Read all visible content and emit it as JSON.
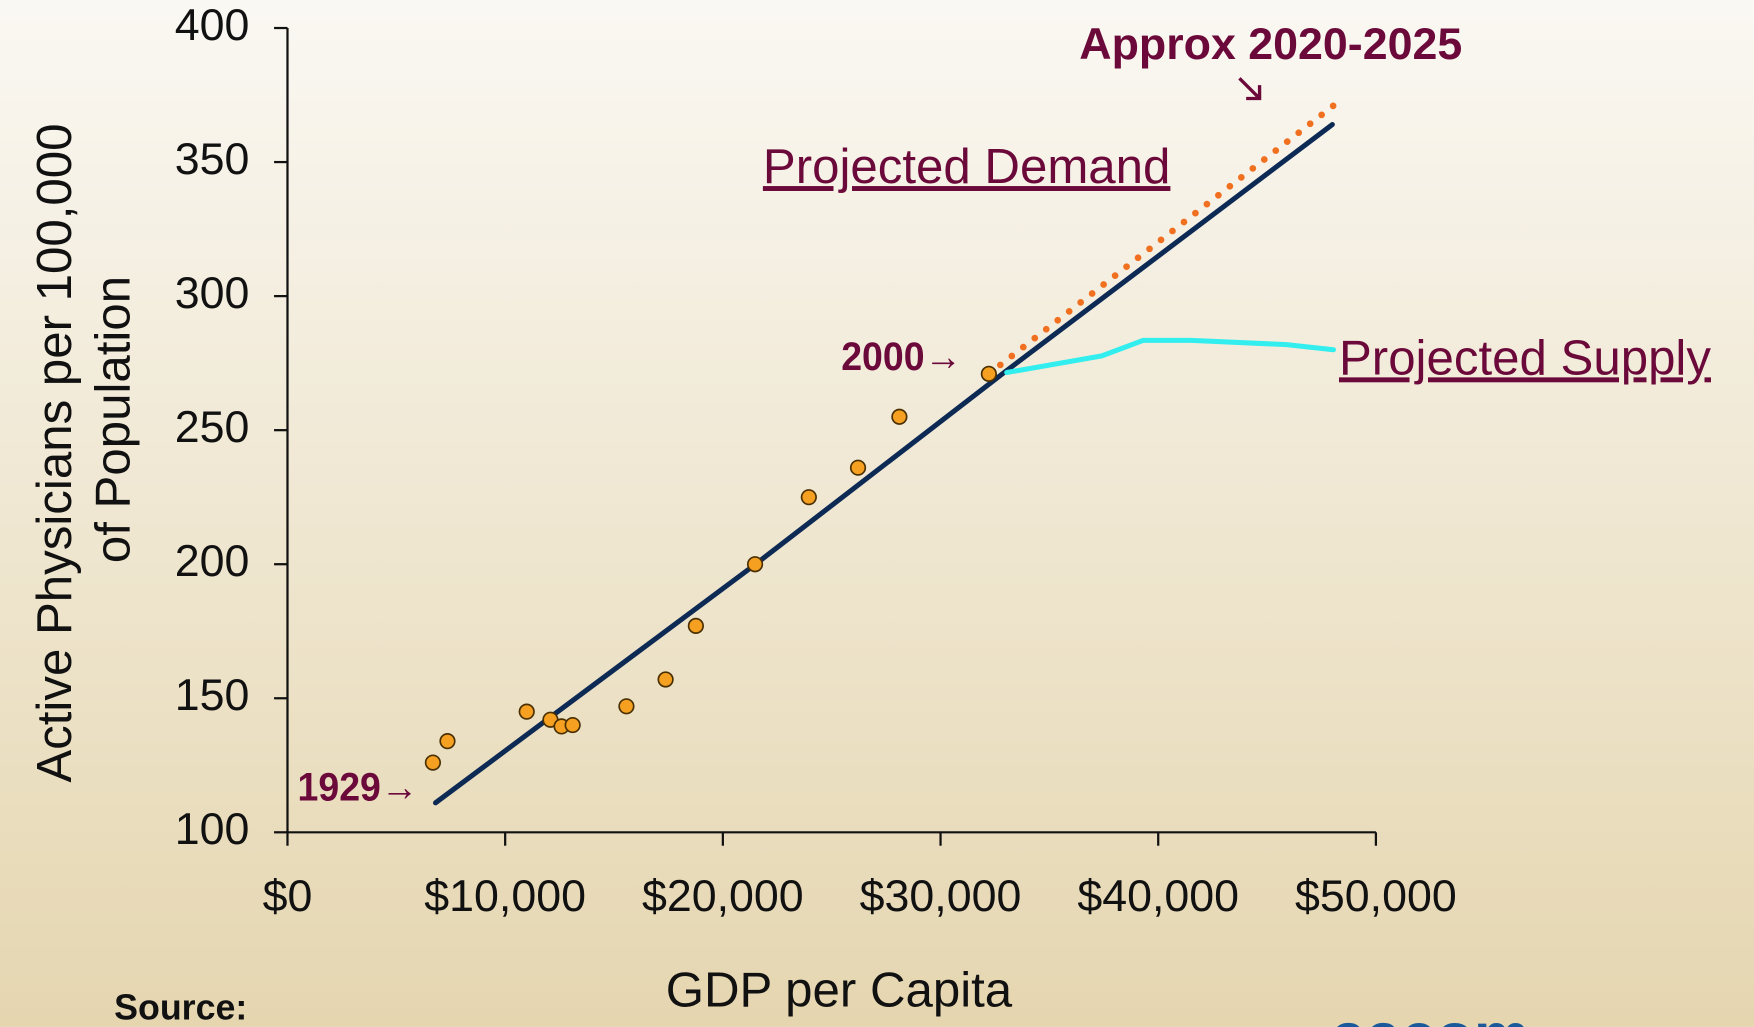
{
  "chart_data": {
    "type": "scatter",
    "xlabel": "GDP per Capita",
    "ylabel": [
      "Active Physicians per 100,000",
      "of Population"
    ],
    "annotations": [
      "Approx 2020-2025",
      "Projected Demand",
      "Projected Supply",
      "2000→",
      "1929→"
    ],
    "source": "Source:",
    "logo": "aacom",
    "xlim": [
      0,
      50000
    ],
    "xticks": [
      {
        "value": 0,
        "label": "$0"
      },
      {
        "value": 10000,
        "label": "$10,000"
      },
      {
        "value": 20000,
        "label": "$20,000"
      },
      {
        "value": 30000,
        "label": "$30,000"
      },
      {
        "value": 40000,
        "label": "$40,000"
      },
      {
        "value": 50000,
        "label": "$50,000"
      }
    ],
    "ylim": [
      100,
      400
    ],
    "yticks": [
      100,
      150,
      200,
      250,
      300,
      350,
      400
    ],
    "series": [
      {
        "mode": "line",
        "color": "#0d2a55",
        "x": [
          6800,
          21500,
          33000,
          48000
        ],
        "values": [
          111,
          200,
          272,
          364
        ]
      },
      {
        "mode": "dotted",
        "color": "#f07020",
        "x": [
          32220,
          48360
        ],
        "values": [
          271,
          373
        ]
      },
      {
        "mode": "line",
        "color": "#33eeee",
        "x": [
          33040,
          37410,
          39310,
          41520,
          45890,
          48050
        ],
        "values": [
          271.5,
          277.7,
          283.5,
          283.5,
          281.9,
          280
        ]
      },
      {
        "mode": "markers",
        "color": "#f5a020",
        "x": [
          6680,
          7350,
          10990,
          12080,
          12590,
          13100,
          15570,
          17370,
          18760,
          21480,
          23950,
          26210,
          28110,
          32220
        ],
        "values": [
          126,
          134,
          145,
          142,
          139.5,
          140,
          147,
          157,
          177,
          200,
          225,
          236,
          255,
          271
        ]
      }
    ]
  }
}
